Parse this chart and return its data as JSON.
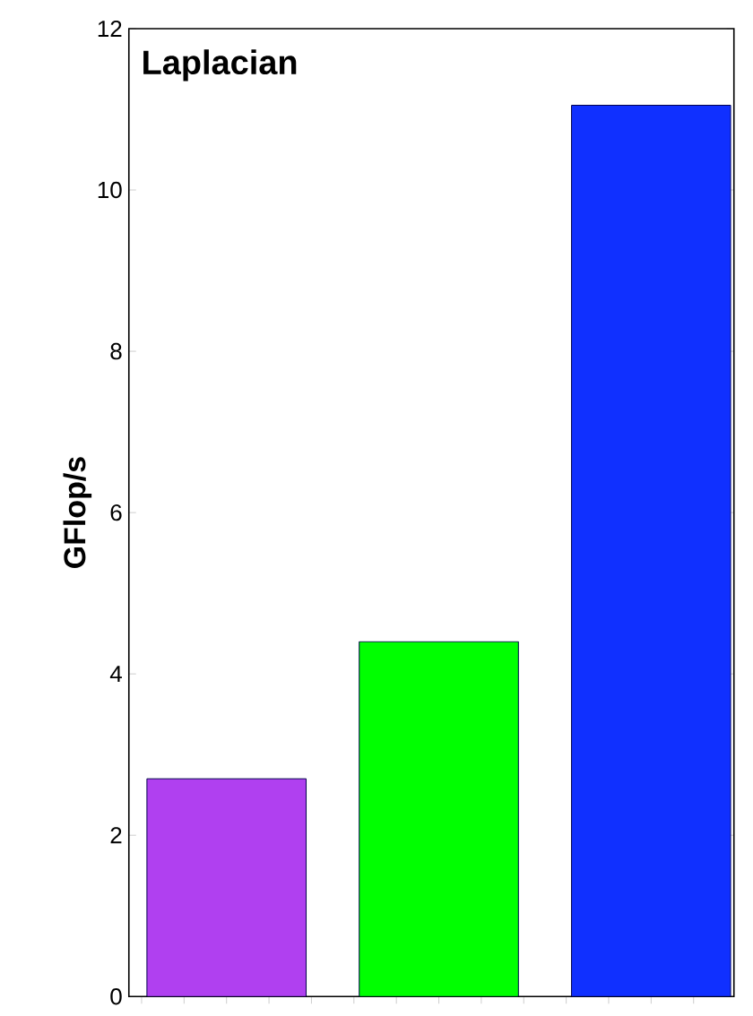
{
  "chart_data": {
    "type": "bar",
    "title": "Laplacian",
    "ylabel": "GFlop/s",
    "categories": [
      null,
      null,
      null
    ],
    "values": [
      2.7,
      4.4,
      11.05
    ],
    "colors": [
      "#b040f0",
      "#00ff00",
      "#1030ff"
    ],
    "ylim": [
      0,
      12
    ],
    "yticks": [
      0,
      2,
      4,
      6,
      8,
      10,
      12
    ]
  }
}
